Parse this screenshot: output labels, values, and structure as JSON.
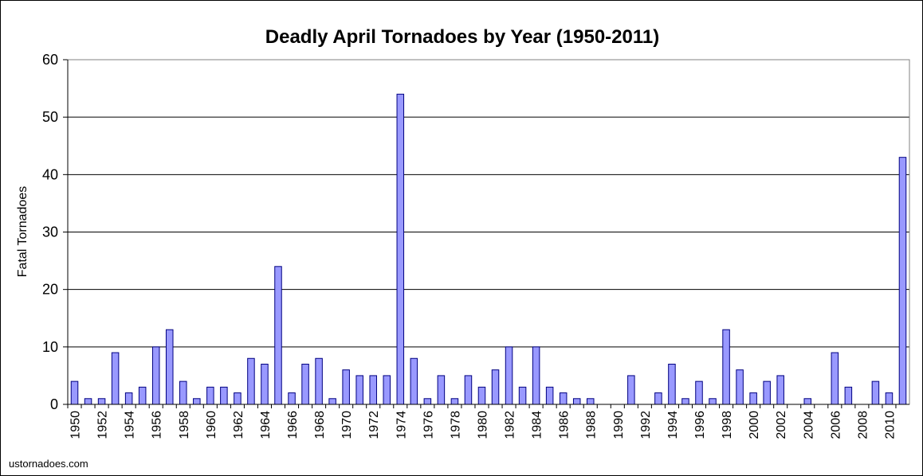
{
  "credit": "ustornadoes.com",
  "chart_data": {
    "type": "bar",
    "title": "Deadly April Tornadoes by Year (1950-2011)",
    "xlabel": "",
    "ylabel": "Fatal Tornadoes",
    "ylim": [
      0,
      60
    ],
    "yticks": [
      0,
      10,
      20,
      30,
      40,
      50,
      60
    ],
    "grid": true,
    "legend": "none",
    "bar_color": "#9999ff",
    "categories": [
      "1950",
      "1951",
      "1952",
      "1953",
      "1954",
      "1955",
      "1956",
      "1957",
      "1958",
      "1959",
      "1960",
      "1961",
      "1962",
      "1963",
      "1964",
      "1965",
      "1966",
      "1967",
      "1968",
      "1969",
      "1970",
      "1971",
      "1972",
      "1973",
      "1974",
      "1975",
      "1976",
      "1977",
      "1978",
      "1979",
      "1980",
      "1981",
      "1982",
      "1983",
      "1984",
      "1985",
      "1986",
      "1987",
      "1988",
      "1989",
      "1990",
      "1991",
      "1992",
      "1993",
      "1994",
      "1995",
      "1996",
      "1997",
      "1998",
      "1999",
      "2000",
      "2001",
      "2002",
      "2003",
      "2004",
      "2005",
      "2006",
      "2007",
      "2008",
      "2009",
      "2010",
      "2011"
    ],
    "tick_labels": [
      "1950",
      "1952",
      "1954",
      "1956",
      "1958",
      "1960",
      "1962",
      "1964",
      "1966",
      "1968",
      "1970",
      "1972",
      "1974",
      "1976",
      "1978",
      "1980",
      "1982",
      "1984",
      "1986",
      "1988",
      "1990",
      "1992",
      "1994",
      "1996",
      "1998",
      "2000",
      "2002",
      "2004",
      "2006",
      "2008",
      "2010"
    ],
    "values": [
      4,
      1,
      1,
      9,
      2,
      3,
      10,
      13,
      4,
      1,
      3,
      3,
      2,
      8,
      7,
      24,
      2,
      7,
      8,
      1,
      6,
      5,
      5,
      5,
      54,
      8,
      1,
      5,
      1,
      5,
      3,
      6,
      10,
      3,
      10,
      3,
      2,
      1,
      1,
      0,
      0,
      5,
      0,
      2,
      7,
      1,
      4,
      1,
      13,
      6,
      2,
      4,
      5,
      0,
      1,
      0,
      9,
      3,
      0,
      4,
      2,
      43
    ]
  }
}
